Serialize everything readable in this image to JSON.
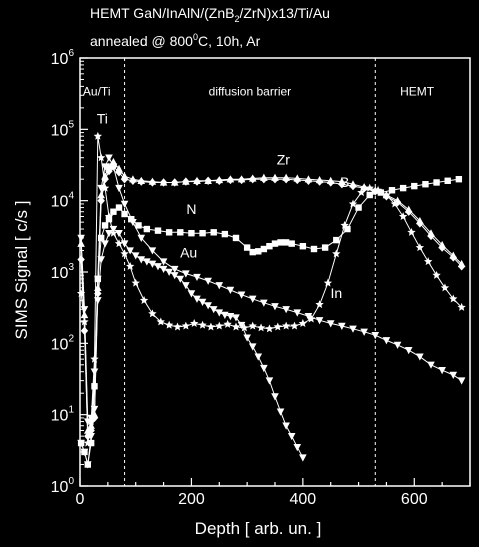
{
  "chart_data": {
    "type": "scatter",
    "title_line1": "HEMT GaN/InAlN/(ZnB",
    "title_sub1": "2",
    "title_line1b": "/ZrN)x13/Ti/Au",
    "title_line2a": "annealed @ 800",
    "title_sup": "0",
    "title_line2b": "C, 10h, Ar",
    "xlabel": "Depth [ arb. un. ]",
    "ylabel": "SIMS Signal [ c/s ]",
    "xlim": [
      0,
      700
    ],
    "ylim": [
      1,
      1000000
    ],
    "yscale": "log",
    "x_ticks": [
      0,
      200,
      400,
      600
    ],
    "y_ticks": [
      {
        "value": 1,
        "base": "10",
        "exp": "0"
      },
      {
        "value": 10,
        "base": "10",
        "exp": "1"
      },
      {
        "value": 100,
        "base": "10",
        "exp": "2"
      },
      {
        "value": 1000,
        "base": "10",
        "exp": "3"
      },
      {
        "value": 10000,
        "base": "10",
        "exp": "4"
      },
      {
        "value": 100000,
        "base": "10",
        "exp": "5"
      },
      {
        "value": 1000000,
        "base": "10",
        "exp": "6"
      }
    ],
    "region_dividers": [
      80,
      530
    ],
    "regions": [
      {
        "label": "Au/Ti",
        "x": 30,
        "y": 300000
      },
      {
        "label": "diffusion barrier",
        "x": 305,
        "y": 300000
      },
      {
        "label": "HEMT",
        "x": 605,
        "y": 300000
      }
    ],
    "annotations": [
      {
        "label": "Ti",
        "x": 40,
        "y": 120000
      },
      {
        "label": "Zr",
        "x": 365,
        "y": 32000
      },
      {
        "label": "B",
        "x": 475,
        "y": 15500
      },
      {
        "label": "N",
        "x": 200,
        "y": 6500
      },
      {
        "label": "Au",
        "x": 195,
        "y": 1600
      },
      {
        "label": "In",
        "x": 460,
        "y": 430
      }
    ],
    "series": [
      {
        "marker": "square",
        "x": [
          2,
          8,
          14,
          20,
          26,
          32,
          38,
          45,
          52,
          60,
          70,
          80,
          92,
          105,
          120,
          140,
          160,
          180,
          200,
          220,
          240,
          260,
          280,
          300,
          310,
          320,
          330,
          340,
          350,
          360,
          370,
          380,
          400,
          420,
          440,
          460,
          480,
          500,
          520,
          540,
          560,
          580,
          600,
          620,
          640,
          660,
          680
        ],
        "y": [
          4,
          3,
          2,
          4,
          25,
          800,
          3000,
          4500,
          5500,
          7000,
          8000,
          6500,
          5500,
          4500,
          4000,
          3800,
          3600,
          3600,
          3500,
          3500,
          3600,
          3400,
          3000,
          2200,
          1900,
          1950,
          2100,
          2300,
          2500,
          2600,
          2600,
          2500,
          2300,
          2100,
          2200,
          2800,
          4000,
          8000,
          12000,
          13000,
          14000,
          15000,
          16000,
          17000,
          18000,
          19000,
          20000
        ]
      },
      {
        "marker": "triangle-down",
        "x": [
          2,
          8,
          14,
          20,
          26,
          32,
          38,
          45,
          52,
          60,
          70,
          80,
          95,
          110,
          130,
          150,
          170,
          190,
          210,
          230,
          250,
          270,
          290,
          310,
          330,
          350,
          370,
          390,
          410,
          430,
          450,
          470,
          490,
          510,
          530,
          550,
          570,
          590,
          610,
          630,
          650,
          670,
          685
        ],
        "y": [
          3000,
          300,
          8,
          9,
          12,
          800,
          15000,
          30000,
          40000,
          30000,
          15000,
          9000,
          5000,
          3000,
          2000,
          1400,
          1100,
          950,
          850,
          750,
          650,
          560,
          480,
          420,
          370,
          330,
          300,
          270,
          240,
          210,
          190,
          175,
          160,
          145,
          130,
          110,
          95,
          80,
          65,
          50,
          42,
          36,
          30
        ]
      },
      {
        "marker": "triangle-up",
        "x": [
          2,
          8,
          14,
          20,
          26,
          32,
          38,
          45,
          52,
          60,
          70,
          80,
          95,
          110,
          130,
          150,
          170,
          190,
          210,
          230,
          250,
          270,
          290,
          310,
          330,
          350,
          370,
          390,
          410,
          430,
          450,
          470,
          490,
          510,
          530,
          550,
          570,
          590,
          610,
          630,
          650,
          670,
          685
        ],
        "y": [
          2500,
          250,
          6,
          7,
          10,
          600,
          12000,
          22000,
          30000,
          35000,
          28000,
          22000,
          20000,
          19000,
          18500,
          18000,
          18000,
          18500,
          19000,
          19000,
          19500,
          20000,
          20000,
          20500,
          21000,
          21000,
          21000,
          20500,
          20000,
          19500,
          19000,
          18500,
          17000,
          15500,
          14000,
          12000,
          10000,
          7500,
          5200,
          3500,
          2400,
          1700,
          1300
        ]
      },
      {
        "marker": "diamond",
        "x": [
          2,
          8,
          14,
          20,
          26,
          32,
          38,
          45,
          52,
          60,
          70,
          80,
          95,
          110,
          130,
          150,
          170,
          190,
          210,
          230,
          250,
          270,
          290,
          310,
          330,
          350,
          370,
          390,
          410,
          430,
          450,
          470,
          490,
          510,
          530,
          550,
          570,
          590,
          610,
          630,
          650,
          670,
          685
        ],
        "y": [
          1500,
          150,
          5,
          6,
          9,
          500,
          10000,
          20000,
          26000,
          30000,
          25000,
          20000,
          19000,
          18500,
          18000,
          18000,
          18000,
          18500,
          18500,
          19000,
          19000,
          19500,
          19500,
          20000,
          20000,
          20000,
          20000,
          19500,
          19000,
          18500,
          18000,
          17000,
          16000,
          15000,
          13500,
          11500,
          9500,
          7000,
          4800,
          3200,
          2200,
          1600,
          1200
        ]
      },
      {
        "marker": "star",
        "x": [
          2,
          8,
          14,
          20,
          26,
          32,
          38,
          45,
          52,
          60,
          70,
          80,
          90,
          100,
          115,
          130,
          145,
          160,
          175,
          190,
          205,
          220,
          235,
          250,
          265,
          280,
          295,
          310,
          325,
          340,
          355,
          370,
          385,
          400,
          415,
          430,
          445,
          460,
          475,
          490,
          505,
          520,
          535,
          550,
          565,
          580,
          595,
          610,
          625,
          640,
          655,
          670,
          685
        ],
        "y": [
          500,
          200,
          4,
          8,
          60,
          80000,
          40000,
          15000,
          6000,
          3500,
          2500,
          1800,
          1200,
          700,
          400,
          260,
          200,
          180,
          170,
          175,
          190,
          180,
          170,
          175,
          185,
          170,
          165,
          175,
          165,
          160,
          170,
          175,
          175,
          190,
          220,
          350,
          700,
          1800,
          4500,
          9000,
          13000,
          15000,
          14000,
          12000,
          9000,
          6000,
          3600,
          2200,
          1400,
          900,
          600,
          420,
          320
        ]
      },
      {
        "marker": "triangle-down",
        "x": [
          2,
          8,
          14,
          20,
          26,
          32,
          38,
          45,
          52,
          60,
          70,
          80,
          90,
          100,
          110,
          120,
          130,
          140,
          150,
          160,
          170,
          180,
          190,
          200,
          210,
          220,
          230,
          240,
          250,
          260,
          270,
          280,
          290,
          300,
          310,
          320,
          330,
          340,
          350,
          360,
          370,
          380,
          390,
          400
        ],
        "y": [
          4,
          3,
          2,
          5,
          40,
          400,
          1500,
          2500,
          3500,
          4000,
          3500,
          2500,
          2000,
          1700,
          1500,
          1400,
          1300,
          1200,
          1100,
          1000,
          900,
          800,
          650,
          500,
          420,
          380,
          340,
          300,
          270,
          250,
          240,
          230,
          180,
          120,
          90,
          65,
          45,
          30,
          18,
          11,
          7,
          5,
          3.5,
          2.5
        ]
      }
    ]
  }
}
